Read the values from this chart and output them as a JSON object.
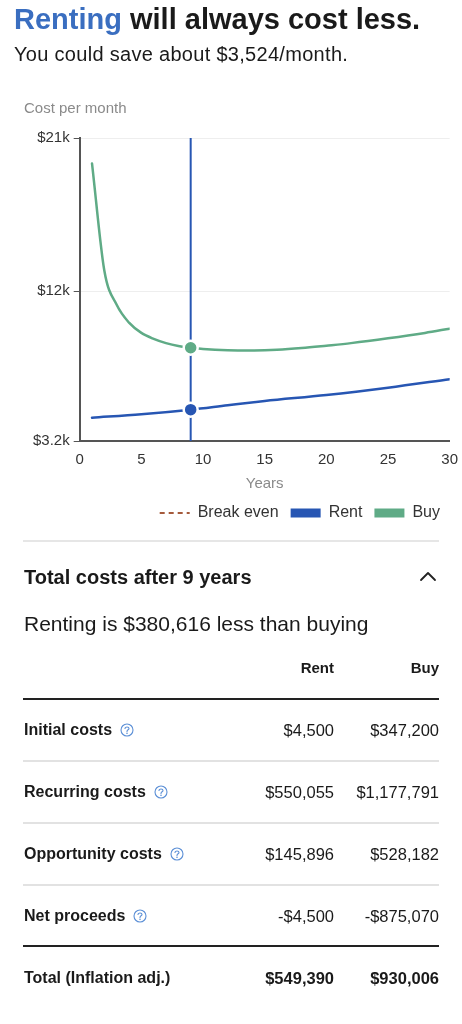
{
  "chart_data": {
    "type": "line",
    "title": "Renting will always cost less.",
    "subtitle": "You could save about $3,524/month.",
    "xlabel": "Years",
    "ylabel": "Cost per month",
    "xlim": [
      0,
      30
    ],
    "xticks": [
      0,
      5,
      10,
      15,
      20,
      25,
      30
    ],
    "ylim": [
      3.2,
      21
    ],
    "yticks": [
      {
        "value": 3.2,
        "label": "$3.2k"
      },
      {
        "value": 12,
        "label": "$12k"
      },
      {
        "value": 21,
        "label": "$21k"
      }
    ],
    "grid": "y",
    "legend": "bottom right",
    "marker": "none",
    "line_style": "solid",
    "series": [
      {
        "name": "Break even",
        "type": "line",
        "color": "#a55a3c",
        "line_style": "dashed"
      },
      {
        "name": "Rent",
        "color": "#2756b3",
        "x": [
          1,
          5,
          9,
          12,
          15,
          20,
          25,
          30
        ],
        "values": [
          4.57,
          4.77,
          5.04,
          5.3,
          5.55,
          5.9,
          6.33,
          6.83
        ]
      },
      {
        "name": "Buy",
        "color": "#5fab86",
        "x": [
          1,
          2,
          3,
          4,
          5,
          6,
          7,
          8,
          9,
          10,
          12,
          14,
          16,
          18,
          20,
          22,
          25,
          28,
          30
        ],
        "values": [
          19.5,
          13.2,
          11.2,
          10.15,
          9.55,
          9.2,
          8.95,
          8.78,
          8.68,
          8.6,
          8.53,
          8.52,
          8.56,
          8.66,
          8.8,
          8.95,
          9.23,
          9.55,
          9.8
        ]
      },
      {
        "type": "scatter",
        "color": "#2756b3",
        "marker": "circle",
        "x": [
          9
        ],
        "values": [
          5.04
        ]
      },
      {
        "type": "scatter",
        "color": "#5fab86",
        "marker": "circle",
        "x": [
          9
        ],
        "values": [
          8.68
        ]
      }
    ],
    "ref_lines": [
      {
        "axis": "x",
        "value": 9,
        "color": "#2756b3"
      }
    ],
    "annotations": [
      "Total costs after 9 years",
      "Renting is $380,616 less than buying",
      "Rent",
      "Buy",
      "Initial costs",
      "$4,500",
      "$347,200",
      "Recurring costs",
      "$550,055",
      "$1,177,791",
      "Opportunity costs",
      "$145,896",
      "$528,182",
      "Net proceeds",
      "-$4,500",
      "-$875,070",
      "Total (Inflation adj.)",
      "$549,390",
      "$930,006"
    ]
  }
}
